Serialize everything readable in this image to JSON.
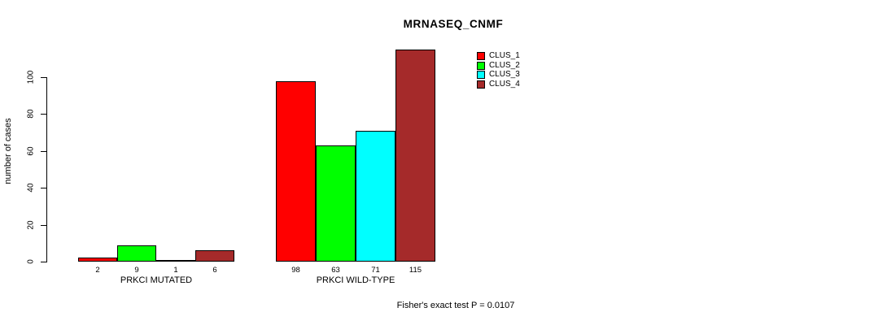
{
  "title": "MRNASEQ_CNMF",
  "footer": "Fisher's exact test P = 0.0107",
  "chart_data": {
    "type": "bar",
    "title": "MRNASEQ_CNMF",
    "xlabel": "",
    "ylabel": "number of cases",
    "ylim": [
      0,
      115
    ],
    "yticks": [
      0,
      20,
      40,
      60,
      80,
      100
    ],
    "grid": false,
    "legend_position": "top-right",
    "categories": [
      "PRKCI MUTATED",
      "PRKCI WILD-TYPE"
    ],
    "series": [
      {
        "name": "CLUS_1",
        "color": "#FF0000",
        "values": [
          2,
          98
        ]
      },
      {
        "name": "CLUS_2",
        "color": "#00FF00",
        "values": [
          9,
          63
        ]
      },
      {
        "name": "CLUS_3",
        "color": "#00FFFF",
        "values": [
          1,
          71
        ]
      },
      {
        "name": "CLUS_4",
        "color": "#A52A2A",
        "values": [
          6,
          115
        ]
      }
    ],
    "bar_value_labels": true,
    "annotation": "Fisher's exact test P = 0.0107"
  }
}
